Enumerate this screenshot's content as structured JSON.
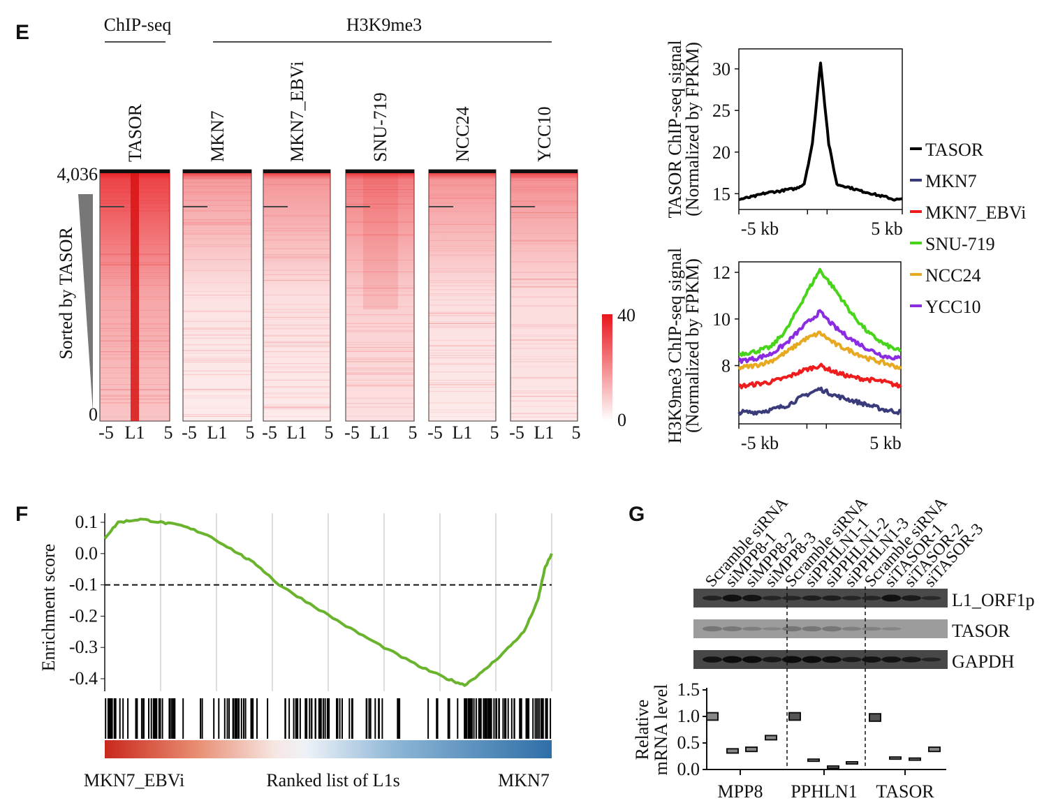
{
  "panels": {
    "e": "E",
    "f": "F",
    "g": "G"
  },
  "heatmap": {
    "group_chipseq": "ChIP-seq",
    "group_h3k9me3": "H3K9me3",
    "columns": [
      "TASOR",
      "MKN7",
      "MKN7_EBVi",
      "SNU-719",
      "NCC24",
      "YCC10"
    ],
    "y_top": "4,036",
    "y_bottom": "0",
    "sort_label": "Sorted by TASOR",
    "xticks": [
      "-5",
      "L1",
      "5"
    ],
    "colorbar": {
      "max": "40",
      "min": "0",
      "color_high": "#e8161b",
      "color_low": "#ffffff"
    }
  },
  "legend": [
    {
      "name": "TASOR",
      "color": "#000000"
    },
    {
      "name": "MKN7",
      "color": "#3a3b7a"
    },
    {
      "name": "MKN7_EBVi",
      "color": "#ee1c1c"
    },
    {
      "name": "SNU-719",
      "color": "#49d41c"
    },
    {
      "name": "NCC24",
      "color": "#e6a91f"
    },
    {
      "name": "YCC10",
      "color": "#8b2be2"
    }
  ],
  "blot": {
    "lanes": [
      "Scramble siRNA",
      "siMPP8-1",
      "siMPP8-2",
      "siMPP8-3",
      "Scramble siRNA",
      "siPPHLN1-1",
      "siPPHLN1-2",
      "siPPHLN1-3",
      "Scramble siRNA",
      "siTASOR-1",
      "siTASOR-2",
      "siTASOR-3"
    ],
    "rows": [
      "L1_ORF1p",
      "TASOR",
      "GAPDH"
    ]
  },
  "chart_data": [
    {
      "type": "line",
      "ylabel": "TASOR ChIP-seq signal (Normalized by FPKM)",
      "ylabel_lines": [
        "TASOR ChIP-seq signal",
        "(Normalized by FPKM)"
      ],
      "xtick_labels": [
        "-5 kb",
        "5 kb"
      ],
      "ytick_labels": [
        "15",
        "20",
        "25",
        "30"
      ],
      "xlim": [
        -5,
        5
      ],
      "ylim": [
        13.1,
        32.4
      ],
      "x": [
        -5,
        -4.5,
        -4,
        -3.5,
        -3,
        -2.5,
        -2,
        -1.5,
        -1,
        -0.5,
        0,
        0.5,
        1,
        1.5,
        2,
        2.5,
        3,
        3.5,
        4,
        4.5,
        5
      ],
      "series": [
        {
          "name": "TASOR",
          "values": [
            14.3,
            14.5,
            14.7,
            15.0,
            15.2,
            15.3,
            15.5,
            15.6,
            16.2,
            21,
            30.8,
            21,
            16.1,
            15.9,
            15.6,
            15.3,
            15.1,
            14.8,
            14.6,
            14.3,
            14.3
          ]
        }
      ]
    },
    {
      "type": "line",
      "ylabel": "H3K9me3 ChIP-seq signal (Normalized by FPKM)",
      "ylabel_lines": [
        "H3K9me3 ChIP-seq signal",
        "(Normalized by FPKM)"
      ],
      "xtick_labels": [
        "-5 kb",
        "5 kb"
      ],
      "ytick_labels": [
        "8",
        "10",
        "12"
      ],
      "xlim": [
        -5,
        5
      ],
      "ylim": [
        5.5,
        12.45
      ],
      "x": [
        -5,
        -4,
        -3,
        -2,
        -1,
        0,
        1,
        2,
        3,
        4,
        5
      ],
      "series": [
        {
          "name": "MKN7",
          "values": [
            6.0,
            6.0,
            6.1,
            6.3,
            6.7,
            7.0,
            6.7,
            6.5,
            6.3,
            6.1,
            6.0
          ]
        },
        {
          "name": "MKN7_EBVi",
          "values": [
            7.1,
            7.2,
            7.3,
            7.5,
            7.8,
            8.0,
            7.7,
            7.5,
            7.4,
            7.3,
            7.1
          ]
        },
        {
          "name": "SNU-719",
          "values": [
            8.5,
            8.6,
            8.8,
            9.6,
            10.9,
            12.1,
            11.2,
            10.2,
            9.4,
            8.9,
            8.6
          ]
        },
        {
          "name": "NCC24",
          "values": [
            7.9,
            8.0,
            8.2,
            8.6,
            9.1,
            9.4,
            8.9,
            8.6,
            8.3,
            8.1,
            7.9
          ]
        },
        {
          "name": "YCC10",
          "values": [
            8.2,
            8.3,
            8.5,
            9.0,
            9.7,
            10.3,
            9.6,
            9.1,
            8.7,
            8.4,
            8.3
          ]
        }
      ]
    },
    {
      "type": "line",
      "ylabel": "Enrichment score",
      "xlabel": "Ranked list of L1s",
      "left_label": "MKN7_EBVi",
      "right_label": "MKN7",
      "ytick_labels": [
        "0.1",
        "0.0",
        "-0.1",
        "-0.2",
        "-0.3",
        "-0.4"
      ],
      "ylim": [
        -0.42,
        0.12
      ],
      "threshold": -0.1,
      "rank_fraction": [
        0,
        0.03,
        0.08,
        0.125,
        0.17,
        0.23,
        0.3,
        0.344,
        0.39,
        0.47,
        0.55,
        0.625,
        0.703,
        0.766,
        0.805,
        0.844,
        0.89,
        0.938,
        0.969,
        0.984,
        1.0
      ],
      "series": [
        {
          "color": "#6ab42d",
          "values": [
            0.05,
            0.1,
            0.11,
            0.1,
            0.09,
            0.06,
            0.0,
            -0.04,
            -0.1,
            -0.17,
            -0.24,
            -0.3,
            -0.36,
            -0.4,
            -0.42,
            -0.38,
            -0.32,
            -0.25,
            -0.15,
            -0.05,
            0.0
          ]
        }
      ]
    },
    {
      "type": "box",
      "ylabel": "Relative mRNA level",
      "ylabel_lines": [
        "Relative",
        "mRNA level"
      ],
      "ytick_labels": [
        "0.0",
        "0.5",
        "1.0",
        "1.5"
      ],
      "ylim": [
        0,
        1.5
      ],
      "categories": [
        "MPP8",
        "PPHLN1",
        "TASOR"
      ],
      "groups": [
        {
          "name": "MPP8",
          "values": [
            1.0,
            0.35,
            0.38,
            0.6
          ]
        },
        {
          "name": "PPHLN1",
          "values": [
            1.0,
            0.18,
            0.05,
            0.13
          ]
        },
        {
          "name": "TASOR",
          "values": [
            0.98,
            0.22,
            0.2,
            0.38
          ]
        }
      ]
    }
  ]
}
